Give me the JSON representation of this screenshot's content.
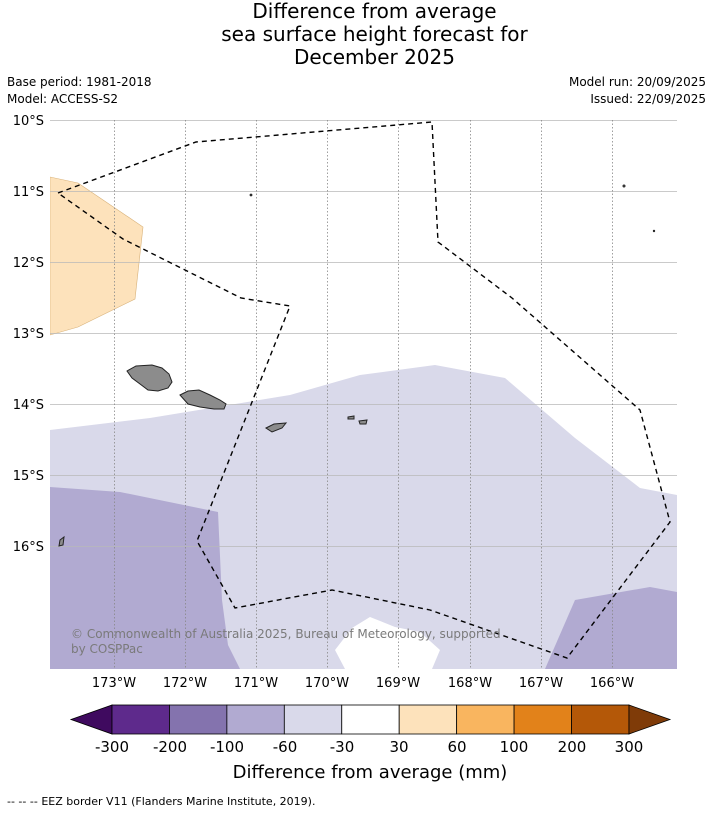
{
  "title": {
    "line1": "Difference from average",
    "line2": "sea surface height forecast for",
    "line3": "December 2025"
  },
  "meta": {
    "base_period": "Base period: 1981-2018",
    "model": "Model: ACCESS-S2",
    "model_run": "Model run: 20/09/2025",
    "issued": "Issued: 22/09/2025"
  },
  "map": {
    "lat_labels": [
      "10°S",
      "11°S",
      "12°S",
      "13°S",
      "14°S",
      "15°S",
      "16°S"
    ],
    "lon_labels": [
      "173°W",
      "172°W",
      "171°W",
      "170°W",
      "169°W",
      "168°W",
      "167°W",
      "166°W"
    ],
    "copyright_line1": "© Commonwealth of Australia 2025, Bureau of Meteorology, supported",
    "copyright_line2": "by COSPPac"
  },
  "colorbar": {
    "ticks": [
      "-300",
      "-200",
      "-100",
      "-60",
      "-30",
      "30",
      "60",
      "100",
      "200",
      "300"
    ],
    "colors": [
      "#3f0a5f",
      "#5e2a8c",
      "#8473ae",
      "#b1aad1",
      "#d9d9ea",
      "#ffffff",
      "#fde2bb",
      "#f9b55f",
      "#e2821a",
      "#b45808",
      "#7f3b08"
    ],
    "label": "Difference from average (mm)"
  },
  "footer": {
    "legend_symbol": "--  --  --",
    "legend_text": "EEZ border V11 (Flanders Marine Institute, 2019)."
  }
}
